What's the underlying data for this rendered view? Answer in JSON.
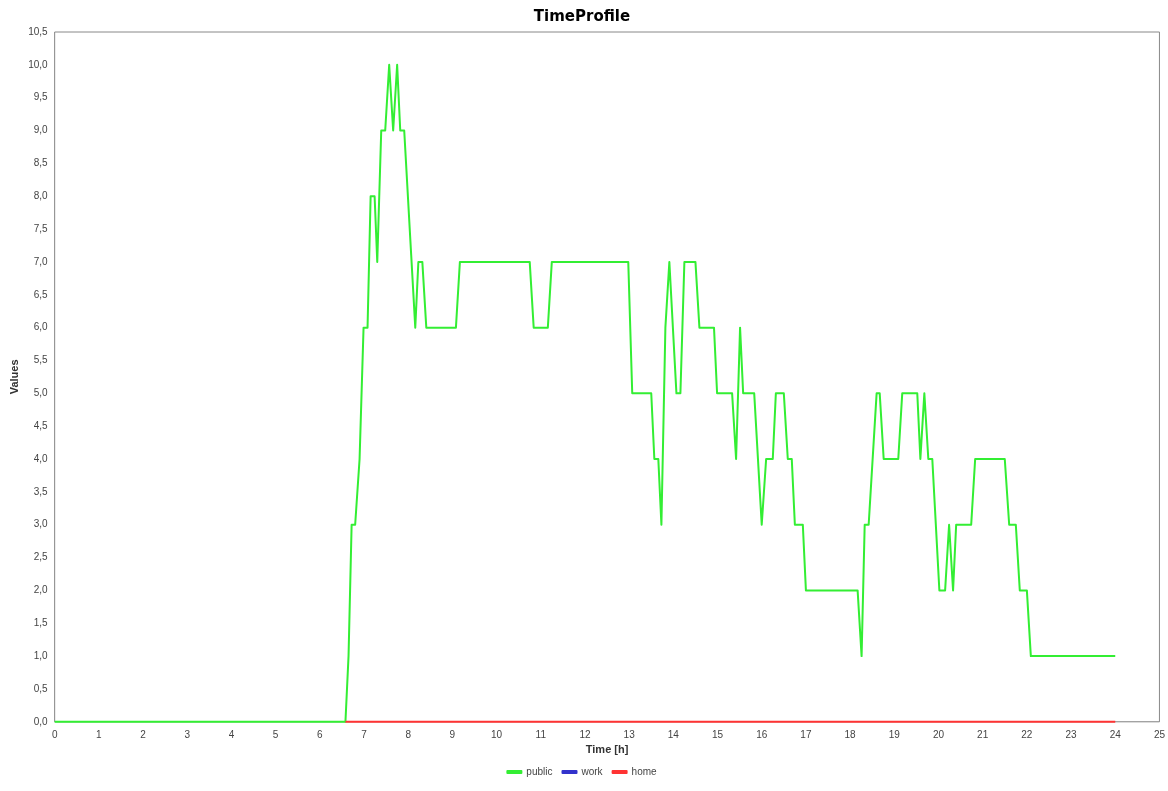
{
  "chart_data": {
    "type": "line",
    "title": "TimeProfile",
    "xlabel": "Time [h]",
    "ylabel": "Values",
    "xlim": [
      0,
      25
    ],
    "xticks": [
      0,
      1,
      2,
      3,
      4,
      5,
      6,
      7,
      8,
      9,
      10,
      11,
      12,
      13,
      14,
      15,
      16,
      17,
      18,
      19,
      20,
      21,
      22,
      23,
      24,
      25
    ],
    "ylim": [
      0,
      10.5
    ],
    "yticks": [
      {
        "value": 0,
        "label": "0,0"
      },
      {
        "value": 0.5,
        "label": "0,5"
      },
      {
        "value": 1,
        "label": "1,0"
      },
      {
        "value": 1.5,
        "label": "1,5"
      },
      {
        "value": 2,
        "label": "2,0"
      },
      {
        "value": 2.5,
        "label": "2,5"
      },
      {
        "value": 3,
        "label": "3,0"
      },
      {
        "value": 3.5,
        "label": "3,5"
      },
      {
        "value": 4,
        "label": "4,0"
      },
      {
        "value": 4.5,
        "label": "4,5"
      },
      {
        "value": 5,
        "label": "5,0"
      },
      {
        "value": 5.5,
        "label": "5,5"
      },
      {
        "value": 6,
        "label": "6,0"
      },
      {
        "value": 6.5,
        "label": "6,5"
      },
      {
        "value": 7,
        "label": "7,0"
      },
      {
        "value": 7.5,
        "label": "7,5"
      },
      {
        "value": 8,
        "label": "8,0"
      },
      {
        "value": 8.5,
        "label": "8,5"
      },
      {
        "value": 9,
        "label": "9,0"
      },
      {
        "value": 9.5,
        "label": "9,5"
      },
      {
        "value": 10,
        "label": "10,0"
      },
      {
        "value": 10.5,
        "label": "10,5"
      }
    ],
    "grid": false,
    "legend": "bottom",
    "marker": "none",
    "line_style": "solid",
    "series": [
      {
        "name": "home",
        "color": "#ff3333",
        "x": [
          6.58,
          24
        ],
        "values": [
          0,
          0
        ]
      },
      {
        "name": "work",
        "color": "#3333cc"
      },
      {
        "name": "public",
        "color": "#33ee33",
        "x": [
          0,
          6.58,
          6.65,
          6.72,
          6.8,
          6.9,
          6.99,
          7.08,
          7.15,
          7.24,
          7.3,
          7.39,
          7.48,
          7.57,
          7.66,
          7.75,
          7.82,
          7.91,
          8.16,
          8.23,
          8.32,
          8.41,
          9.08,
          9.17,
          10.75,
          10.84,
          11.16,
          11.25,
          12.98,
          13.07,
          13.5,
          13.57,
          13.66,
          13.73,
          13.82,
          13.91,
          14.07,
          14.16,
          14.25,
          14.5,
          14.59,
          14.92,
          14.99,
          15.33,
          15.42,
          15.51,
          15.58,
          15.83,
          16.0,
          16.1,
          16.25,
          16.32,
          16.5,
          16.59,
          16.68,
          16.75,
          16.93,
          17.0,
          18.17,
          18.26,
          18.33,
          18.42,
          18.6,
          18.67,
          18.76,
          19.09,
          19.18,
          19.52,
          19.59,
          19.68,
          19.77,
          19.86,
          20.02,
          20.15,
          20.24,
          20.33,
          20.4,
          20.74,
          20.83,
          21.5,
          21.6,
          21.75,
          21.84,
          22.0,
          22.09,
          24.0
        ],
        "values": [
          0,
          0,
          1,
          3,
          3,
          4,
          6,
          6,
          8,
          8,
          7,
          9,
          9,
          10,
          9,
          10,
          9,
          9,
          6,
          7,
          7,
          6,
          6,
          7,
          7,
          6,
          6,
          7,
          7,
          5,
          5,
          4,
          4,
          3,
          6,
          7,
          5,
          5,
          7,
          7,
          6,
          6,
          5,
          5,
          4,
          6,
          5,
          5,
          3,
          4,
          4,
          5,
          5,
          4,
          4,
          3,
          3,
          2,
          2,
          1,
          3,
          3,
          5,
          5,
          4,
          4,
          5,
          5,
          4,
          5,
          4,
          4,
          2,
          2,
          3,
          2,
          3,
          3,
          4,
          4,
          3,
          3,
          2,
          2,
          1,
          1
        ]
      }
    ]
  }
}
